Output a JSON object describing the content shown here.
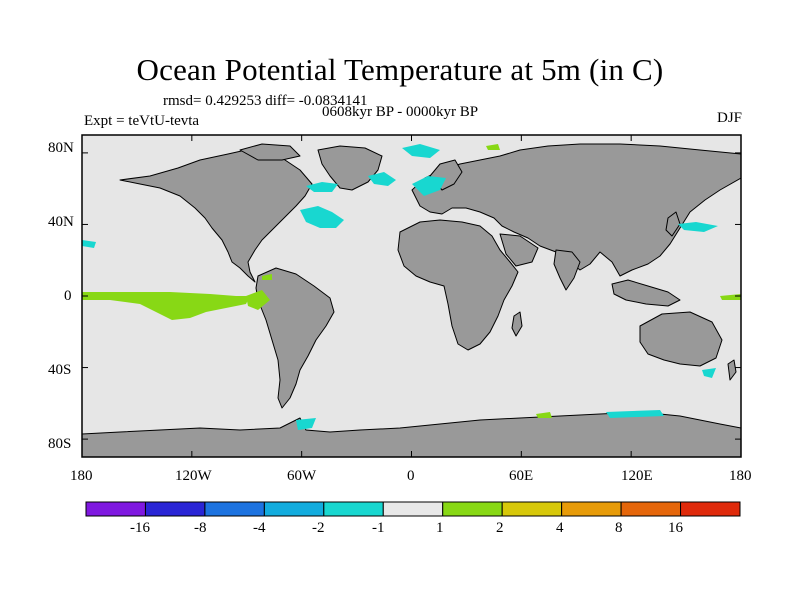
{
  "title": "Ocean Potential Temperature at 5m (in C)",
  "stats_line": "rmsd= 0.429253 diff= -0.0834141",
  "period_line": "0608kyr BP - 0000kyr BP",
  "experiment_line": "Expt = teVtU-tevta",
  "season": "DJF",
  "map": {
    "projection": "cylindrical equidistant",
    "lon_range": [
      -180,
      180
    ],
    "lat_range": [
      -90,
      90
    ],
    "lat_tick_labels": [
      "80N",
      "40N",
      "0",
      "40S",
      "80S"
    ],
    "lon_tick_labels": [
      "180",
      "120W",
      "60W",
      "0",
      "60E",
      "120E",
      "180"
    ],
    "colors": {
      "land": "#999999",
      "ocean_no_change": "#e6e6e6",
      "coastline": "#000000"
    }
  },
  "colorbar": {
    "colors": [
      "#7f18e0",
      "#2a25d5",
      "#1d73e0",
      "#12acde",
      "#18d7d0",
      "#e8e8e8",
      "#88d815",
      "#d7c80a",
      "#e79b09",
      "#e5660a",
      "#df2a0b"
    ],
    "labels": [
      "-16",
      "-8",
      "-4",
      "-2",
      "-1",
      "1",
      "2",
      "4",
      "8",
      "16"
    ]
  }
}
